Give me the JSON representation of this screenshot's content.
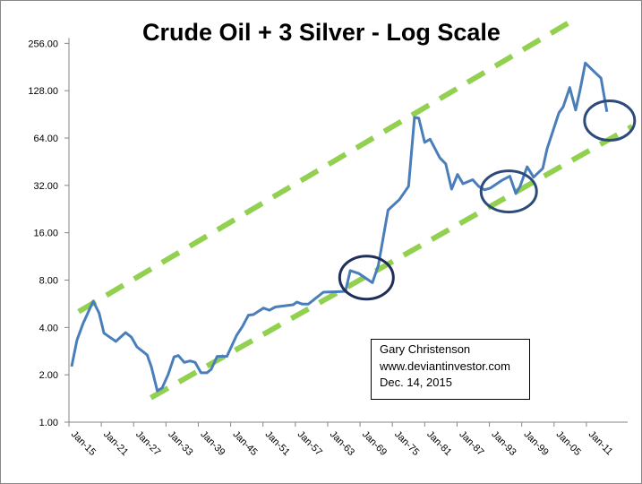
{
  "chart_data": {
    "type": "line",
    "title": "Crude Oil + 3 Silver - Log Scale",
    "xlabel": "",
    "ylabel": "",
    "y_scale": "log2",
    "ylim": [
      1,
      256
    ],
    "y_ticks": [
      "1.00",
      "2.00",
      "4.00",
      "8.00",
      "16.00",
      "32.00",
      "64.00",
      "128.00",
      "256.00"
    ],
    "y_tick_values": [
      1,
      2,
      4,
      8,
      16,
      32,
      64,
      128,
      256
    ],
    "x_ticks": [
      "Jan-15",
      "Jan-21",
      "Jan-27",
      "Jan-33",
      "Jan-39",
      "Jan-45",
      "Jan-51",
      "Jan-57",
      "Jan-63",
      "Jan-69",
      "Jan-75",
      "Jan-81",
      "Jan-87",
      "Jan-93",
      "Jan-99",
      "Jan-05",
      "Jan-11"
    ],
    "x_tick_years": [
      1915,
      1921,
      1927,
      1933,
      1939,
      1945,
      1951,
      1957,
      1963,
      1969,
      1975,
      1981,
      1987,
      1993,
      1999,
      2005,
      2011
    ],
    "xlim": [
      1915,
      2018
    ],
    "grid": false,
    "series": [
      {
        "color": "#4a7ebb",
        "points": [
          [
            1915.5,
            2.26
          ],
          [
            1916.5,
            3.33
          ],
          [
            1917.6,
            4.23
          ],
          [
            1919.5,
            5.88
          ],
          [
            1920.6,
            4.94
          ],
          [
            1921.5,
            3.68
          ],
          [
            1923.7,
            3.26
          ],
          [
            1925.5,
            3.71
          ],
          [
            1926.6,
            3.47
          ],
          [
            1927.6,
            3.01
          ],
          [
            1929.5,
            2.68
          ],
          [
            1930.3,
            2.24
          ],
          [
            1931.4,
            1.58
          ],
          [
            1932.3,
            1.65
          ],
          [
            1933.4,
            2.01
          ],
          [
            1934.5,
            2.6
          ],
          [
            1935.3,
            2.65
          ],
          [
            1936.4,
            2.4
          ],
          [
            1937.5,
            2.45
          ],
          [
            1938.4,
            2.4
          ],
          [
            1939.5,
            2.06
          ],
          [
            1940.6,
            2.06
          ],
          [
            1941.4,
            2.17
          ],
          [
            1942.5,
            2.62
          ],
          [
            1944.3,
            2.62
          ],
          [
            1946.1,
            3.56
          ],
          [
            1947.2,
            4.06
          ],
          [
            1948.3,
            4.79
          ],
          [
            1949.2,
            4.83
          ],
          [
            1951.1,
            5.31
          ],
          [
            1952.2,
            5.15
          ],
          [
            1953.3,
            5.4
          ],
          [
            1956.6,
            5.58
          ],
          [
            1957.3,
            5.8
          ],
          [
            1958.3,
            5.63
          ],
          [
            1959.4,
            5.63
          ],
          [
            1962.2,
            6.7
          ],
          [
            1966.3,
            6.78
          ],
          [
            1967.2,
            9.2
          ],
          [
            1968.8,
            8.8
          ],
          [
            1971.3,
            7.7
          ],
          [
            1972.4,
            9.9
          ],
          [
            1974.2,
            22.3
          ],
          [
            1976.3,
            26
          ],
          [
            1978.0,
            31.6
          ],
          [
            1979.1,
            86.6
          ],
          [
            1979.9,
            85.6
          ],
          [
            1981.0,
            60
          ],
          [
            1982.0,
            62.9
          ],
          [
            1983.8,
            47.9
          ],
          [
            1984.9,
            43.9
          ],
          [
            1986.0,
            30.3
          ],
          [
            1987.1,
            37.6
          ],
          [
            1988.1,
            32.8
          ],
          [
            1989.9,
            34.8
          ],
          [
            1991.0,
            31.6
          ],
          [
            1992.1,
            30
          ],
          [
            1993.2,
            30.8
          ],
          [
            1995.4,
            34.6
          ],
          [
            1996.8,
            36.6
          ],
          [
            1997.9,
            28.4
          ],
          [
            1998.7,
            31.6
          ],
          [
            2000.0,
            42
          ],
          [
            2001.2,
            36.1
          ],
          [
            2002.9,
            41.1
          ],
          [
            2003.7,
            54.7
          ],
          [
            2005.9,
            92.5
          ],
          [
            2006.7,
            101
          ],
          [
            2007.9,
            134
          ],
          [
            2009.0,
            96.5
          ],
          [
            2009.8,
            128
          ],
          [
            2010.8,
            192
          ],
          [
            2012.6,
            167
          ],
          [
            2013.7,
            154
          ],
          [
            2014.8,
            94
          ]
        ]
      }
    ],
    "trendlines": [
      {
        "style": "dashed",
        "color": "#92d050",
        "from": [
          1916.8,
          5.04
        ],
        "to": [
          2009.5,
          376
        ]
      },
      {
        "style": "dashed",
        "color": "#92d050",
        "from": [
          1930.2,
          1.43
        ],
        "to": [
          2019.5,
          75.9
        ]
      }
    ],
    "highlight_circles": [
      {
        "color": "#1f2f5a",
        "center": [
          1970.2,
          8.3
        ]
      },
      {
        "color": "#2c4a7a",
        "center": [
          1996.6,
          29.3
        ]
      },
      {
        "color": "#2c4a7a",
        "center": [
          2015.3,
          82.7
        ]
      }
    ],
    "annotation": {
      "lines": [
        "Gary Christenson",
        "www.deviantinvestor.com",
        "Dec. 14, 2015"
      ]
    }
  }
}
